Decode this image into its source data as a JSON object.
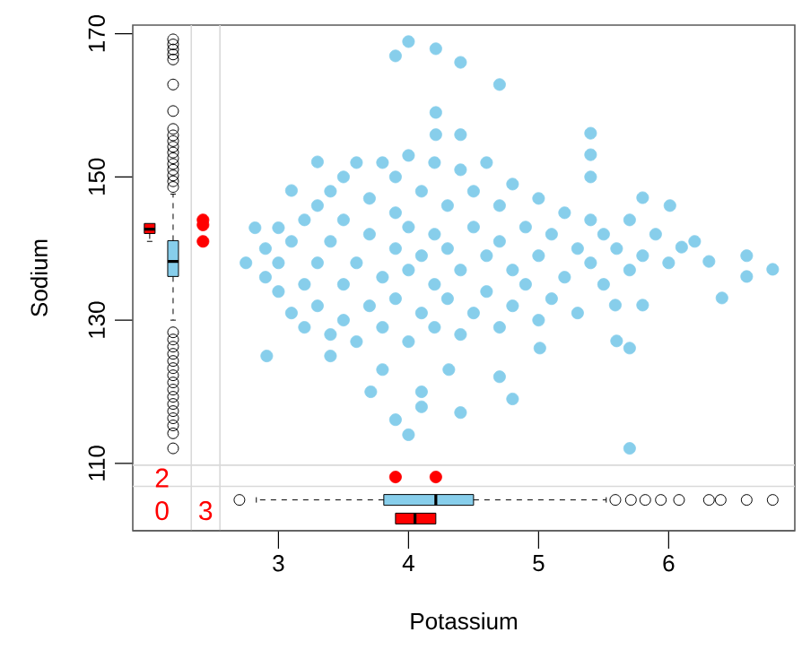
{
  "chart_data": [
    {
      "type": "scatter",
      "ylabel": "Sodium",
      "tick_labels": "y",
      "xlim": [
        1.88,
        6.97
      ],
      "ylim": [
        100.6,
        171.2
      ],
      "xticks": [
        3,
        4,
        5,
        6
      ],
      "yticks": [
        110,
        130,
        150,
        170
      ],
      "marker": "circle",
      "series": [
        {
          "color": "#87ceeb",
          "x": [
            4.0,
            3.9,
            4.21,
            4.4,
            4.7,
            4.21,
            4.21,
            4.4,
            5.4,
            5.4,
            5.4,
            3.3,
            3.1,
            3.0,
            2.82,
            6.01,
            5.8,
            6.1,
            6.31,
            6.6,
            6.6,
            6.8,
            6.41,
            5.8,
            5.59,
            2.91,
            3.4,
            3.8,
            3.71,
            4.1,
            4.1,
            4.4,
            4.8,
            4.7,
            3.9,
            4.0,
            5.7,
            5.6,
            5.7,
            5.01,
            4.31,
            2.75,
            2.9,
            2.9,
            3.0,
            3.0,
            3.1,
            3.1,
            3.2,
            3.2,
            3.2,
            3.3,
            3.3,
            3.3,
            3.4,
            3.4,
            3.4,
            3.5,
            3.5,
            3.5,
            3.5,
            3.6,
            3.6,
            3.6,
            3.7,
            3.7,
            3.7,
            3.8,
            3.8,
            3.8,
            3.9,
            3.9,
            3.9,
            3.9,
            4.0,
            4.0,
            4.0,
            4.0,
            4.1,
            4.1,
            4.1,
            4.2,
            4.2,
            4.2,
            4.2,
            4.3,
            4.3,
            4.3,
            4.4,
            4.4,
            4.4,
            4.5,
            4.5,
            4.5,
            4.6,
            4.6,
            4.6,
            4.7,
            4.7,
            4.7,
            4.8,
            4.8,
            4.8,
            4.9,
            4.9,
            5.0,
            5.0,
            5.0,
            5.1,
            5.1,
            5.2,
            5.2,
            5.3,
            5.3,
            5.4,
            5.4,
            5.5,
            5.5,
            5.6,
            5.7,
            5.7,
            5.8,
            5.9,
            6.0,
            6.2
          ],
          "values": [
            168.9,
            166.9,
            167.9,
            166.0,
            162.9,
            159.0,
            155.9,
            155.9,
            156.1,
            153.1,
            150.0,
            152.1,
            148.1,
            142.9,
            142.9,
            146.0,
            147.1,
            140.2,
            138.2,
            139.0,
            136.1,
            137.1,
            133.1,
            132.1,
            132.1,
            125.0,
            125.0,
            123.1,
            120.0,
            120.0,
            117.9,
            117.1,
            119.0,
            122.1,
            116.1,
            114.0,
            112.1,
            127.1,
            126.1,
            126.1,
            123.1,
            138,
            136,
            140,
            134,
            138,
            131,
            141,
            129,
            135,
            144,
            132,
            138,
            146,
            128,
            141,
            148,
            130,
            135,
            144,
            150,
            127,
            138,
            152,
            132,
            142,
            147,
            129,
            136,
            152,
            133,
            140,
            145,
            150,
            127,
            137,
            143,
            153,
            131,
            139,
            148,
            129,
            135,
            142,
            152,
            133,
            140,
            146,
            128,
            137,
            151,
            131,
            143,
            148,
            134,
            139,
            152,
            129,
            141,
            146,
            132,
            137,
            149,
            135,
            143,
            130,
            139,
            147,
            133,
            142,
            136,
            145,
            131,
            140,
            138,
            144,
            135,
            142,
            140,
            137,
            144,
            139,
            142,
            138,
            141
          ]
        },
        {
          "color": "#ff0000",
          "x": [
            2.42,
            2.42,
            2.42
          ],
          "values": [
            144,
            143.3,
            141
          ]
        },
        {
          "color": "#ff0000",
          "x": [
            3.9,
            4.21
          ],
          "values": [
            108.1,
            108.1
          ]
        },
        {
          "type": "box",
          "color": "#87ceeb",
          "x": [
            2.19
          ],
          "boxes": [
            {
              "low": 130,
              "q1": 136.1,
              "median": 138.2,
              "q3": 141.1,
              "high": 147.6,
              "outliers": [
                169.2,
                168.5,
                167.8,
                167.1,
                166.4,
                162.9,
                159.2,
                156.7,
                155.8,
                155,
                154.2,
                153.4,
                152.6,
                151.8,
                151,
                150.2,
                149.4,
                148.6,
                128.3,
                127.3,
                126.3,
                125.3,
                124.3,
                123.3,
                122.3,
                121.3,
                120.3,
                119.3,
                118.3,
                117.3,
                116.3,
                115.3,
                114.2,
                112.1
              ]
            }
          ]
        },
        {
          "type": "box",
          "color": "#ff0000",
          "x": [
            2.01
          ],
          "boxes": [
            {
              "low": 141,
              "q1": 142.1,
              "median": 142.7,
              "q3": 143.5,
              "high": 143.5
            }
          ]
        }
      ],
      "ref_lines": [
        {
          "axis": "x",
          "value": 2.33,
          "color": "#d9d9d9"
        },
        {
          "axis": "x",
          "value": 2.55,
          "color": "#d9d9d9"
        },
        {
          "axis": "y",
          "value": 109.75,
          "color": "#d9d9d9"
        },
        {
          "axis": "y",
          "value": 106.8,
          "color": "#d9d9d9"
        }
      ],
      "annotations": [
        "2",
        "0",
        "3"
      ]
    },
    {
      "type": "box",
      "orientation": "horizontal",
      "xlabel": "Potassium",
      "xlim": [
        1.88,
        6.97
      ],
      "xticks": [
        3,
        4,
        5,
        6
      ],
      "ylim": [
        100.6,
        171.2
      ],
      "yticks": [
        110,
        130,
        150,
        170
      ],
      "tick_labels": "x",
      "series": [
        {
          "color": "#87ceeb",
          "x": [
            104.9
          ],
          "boxes": [
            {
              "low": 2.83,
              "q1": 3.81,
              "median": 4.21,
              "q3": 4.5,
              "high": 5.52,
              "outliers": [
                2.7,
                5.59,
                5.71,
                5.82,
                5.94,
                6.08,
                6.31,
                6.4,
                6.6,
                6.8
              ]
            }
          ]
        },
        {
          "color": "#ff0000",
          "x": [
            102.3
          ],
          "boxes": [
            {
              "low": 3.9,
              "q1": 3.9,
              "median": 4.05,
              "q3": 4.21,
              "high": 4.21
            }
          ]
        }
      ]
    }
  ]
}
